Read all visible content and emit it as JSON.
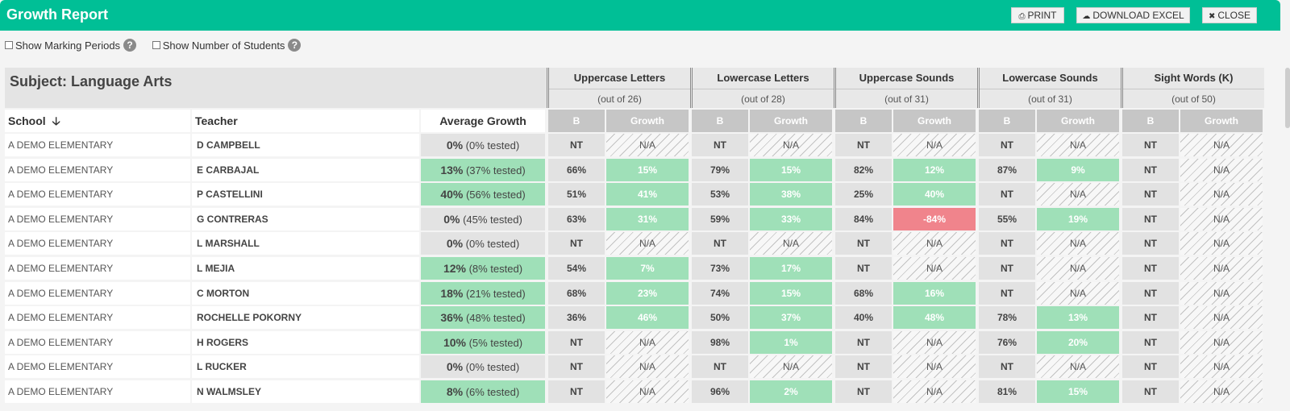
{
  "window": {
    "title": "Growth Report"
  },
  "toolbar": {
    "print_label": "PRINT",
    "download_label": "DOWNLOAD EXCEL",
    "close_label": "CLOSE"
  },
  "filters": {
    "marking_periods_label": "Show Marking Periods",
    "num_students_label": "Show Number of Students",
    "help_glyph": "?"
  },
  "table": {
    "subject": "Subject: Language Arts",
    "school_header": "School",
    "teacher_header": "Teacher",
    "avg_header": "Average Growth",
    "b_label": "B",
    "growth_label": "Growth",
    "skills": [
      {
        "name": "Uppercase Letters",
        "out_of": "(out of 26)"
      },
      {
        "name": "Lowercase Letters",
        "out_of": "(out of 28)"
      },
      {
        "name": "Uppercase Sounds",
        "out_of": "(out of 31)"
      },
      {
        "name": "Lowercase Sounds",
        "out_of": "(out of 31)"
      },
      {
        "name": "Sight Words (K)",
        "out_of": "(out of 50)"
      }
    ],
    "rows": [
      {
        "school": "A DEMO ELEMENTARY",
        "teacher": "D CAMPBELL",
        "avg": "0%",
        "tested": "(0% tested)",
        "avg_status": "neutral",
        "skills": [
          {
            "b": "NT",
            "g": "N/A",
            "s": "na"
          },
          {
            "b": "NT",
            "g": "N/A",
            "s": "na"
          },
          {
            "b": "NT",
            "g": "N/A",
            "s": "na"
          },
          {
            "b": "NT",
            "g": "N/A",
            "s": "na"
          },
          {
            "b": "NT",
            "g": "N/A",
            "s": "na"
          }
        ]
      },
      {
        "school": "A DEMO ELEMENTARY",
        "teacher": "E CARBAJAL",
        "avg": "13%",
        "tested": "(37% tested)",
        "avg_status": "positive",
        "skills": [
          {
            "b": "66%",
            "g": "15%",
            "s": "pos"
          },
          {
            "b": "79%",
            "g": "15%",
            "s": "pos"
          },
          {
            "b": "82%",
            "g": "12%",
            "s": "pos"
          },
          {
            "b": "87%",
            "g": "9%",
            "s": "pos"
          },
          {
            "b": "NT",
            "g": "N/A",
            "s": "na"
          }
        ]
      },
      {
        "school": "A DEMO ELEMENTARY",
        "teacher": "P CASTELLINI",
        "avg": "40%",
        "tested": "(56% tested)",
        "avg_status": "positive",
        "skills": [
          {
            "b": "51%",
            "g": "41%",
            "s": "pos"
          },
          {
            "b": "53%",
            "g": "38%",
            "s": "pos"
          },
          {
            "b": "25%",
            "g": "40%",
            "s": "pos"
          },
          {
            "b": "NT",
            "g": "N/A",
            "s": "na"
          },
          {
            "b": "NT",
            "g": "N/A",
            "s": "na"
          }
        ]
      },
      {
        "school": "A DEMO ELEMENTARY",
        "teacher": "G CONTRERAS",
        "avg": "0%",
        "tested": "(45% tested)",
        "avg_status": "neutral",
        "skills": [
          {
            "b": "63%",
            "g": "31%",
            "s": "pos"
          },
          {
            "b": "59%",
            "g": "33%",
            "s": "pos"
          },
          {
            "b": "84%",
            "g": "-84%",
            "s": "neg"
          },
          {
            "b": "55%",
            "g": "19%",
            "s": "pos"
          },
          {
            "b": "NT",
            "g": "N/A",
            "s": "na"
          }
        ]
      },
      {
        "school": "A DEMO ELEMENTARY",
        "teacher": "L MARSHALL",
        "avg": "0%",
        "tested": "(0% tested)",
        "avg_status": "neutral",
        "skills": [
          {
            "b": "NT",
            "g": "N/A",
            "s": "na"
          },
          {
            "b": "NT",
            "g": "N/A",
            "s": "na"
          },
          {
            "b": "NT",
            "g": "N/A",
            "s": "na"
          },
          {
            "b": "NT",
            "g": "N/A",
            "s": "na"
          },
          {
            "b": "NT",
            "g": "N/A",
            "s": "na"
          }
        ]
      },
      {
        "school": "A DEMO ELEMENTARY",
        "teacher": "L MEJIA",
        "avg": "12%",
        "tested": "(8% tested)",
        "avg_status": "positive",
        "skills": [
          {
            "b": "54%",
            "g": "7%",
            "s": "pos"
          },
          {
            "b": "73%",
            "g": "17%",
            "s": "pos"
          },
          {
            "b": "NT",
            "g": "N/A",
            "s": "na"
          },
          {
            "b": "NT",
            "g": "N/A",
            "s": "na"
          },
          {
            "b": "NT",
            "g": "N/A",
            "s": "na"
          }
        ]
      },
      {
        "school": "A DEMO ELEMENTARY",
        "teacher": "C MORTON",
        "avg": "18%",
        "tested": "(21% tested)",
        "avg_status": "positive",
        "skills": [
          {
            "b": "68%",
            "g": "23%",
            "s": "pos"
          },
          {
            "b": "74%",
            "g": "15%",
            "s": "pos"
          },
          {
            "b": "68%",
            "g": "16%",
            "s": "pos"
          },
          {
            "b": "NT",
            "g": "N/A",
            "s": "na"
          },
          {
            "b": "NT",
            "g": "N/A",
            "s": "na"
          }
        ]
      },
      {
        "school": "A DEMO ELEMENTARY",
        "teacher": "ROCHELLE POKORNY",
        "avg": "36%",
        "tested": "(48% tested)",
        "avg_status": "positive",
        "skills": [
          {
            "b": "36%",
            "g": "46%",
            "s": "pos"
          },
          {
            "b": "50%",
            "g": "37%",
            "s": "pos"
          },
          {
            "b": "40%",
            "g": "48%",
            "s": "pos"
          },
          {
            "b": "78%",
            "g": "13%",
            "s": "pos"
          },
          {
            "b": "NT",
            "g": "N/A",
            "s": "na"
          }
        ]
      },
      {
        "school": "A DEMO ELEMENTARY",
        "teacher": "H ROGERS",
        "avg": "10%",
        "tested": "(5% tested)",
        "avg_status": "positive",
        "skills": [
          {
            "b": "NT",
            "g": "N/A",
            "s": "na"
          },
          {
            "b": "98%",
            "g": "1%",
            "s": "pos"
          },
          {
            "b": "NT",
            "g": "N/A",
            "s": "na"
          },
          {
            "b": "76%",
            "g": "20%",
            "s": "pos"
          },
          {
            "b": "NT",
            "g": "N/A",
            "s": "na"
          }
        ]
      },
      {
        "school": "A DEMO ELEMENTARY",
        "teacher": "L RUCKER",
        "avg": "0%",
        "tested": "(0% tested)",
        "avg_status": "neutral",
        "skills": [
          {
            "b": "NT",
            "g": "N/A",
            "s": "na"
          },
          {
            "b": "NT",
            "g": "N/A",
            "s": "na"
          },
          {
            "b": "NT",
            "g": "N/A",
            "s": "na"
          },
          {
            "b": "NT",
            "g": "N/A",
            "s": "na"
          },
          {
            "b": "NT",
            "g": "N/A",
            "s": "na"
          }
        ]
      },
      {
        "school": "A DEMO ELEMENTARY",
        "teacher": "N WALMSLEY",
        "avg": "8%",
        "tested": "(6% tested)",
        "avg_status": "positive",
        "skills": [
          {
            "b": "NT",
            "g": "N/A",
            "s": "na"
          },
          {
            "b": "96%",
            "g": "2%",
            "s": "pos"
          },
          {
            "b": "NT",
            "g": "N/A",
            "s": "na"
          },
          {
            "b": "81%",
            "g": "15%",
            "s": "pos"
          },
          {
            "b": "NT",
            "g": "N/A",
            "s": "na"
          }
        ]
      }
    ]
  },
  "icons": {
    "print": "printer-icon",
    "download": "cloud-download-icon",
    "close": "close-icon",
    "sort": "arrow-down-icon",
    "help": "help-circle-icon"
  },
  "colors": {
    "header_bar": "#00bf96",
    "growth_positive": "#9fe0b8",
    "growth_negative": "#f0848c",
    "neutral": "#e3e3e3"
  }
}
